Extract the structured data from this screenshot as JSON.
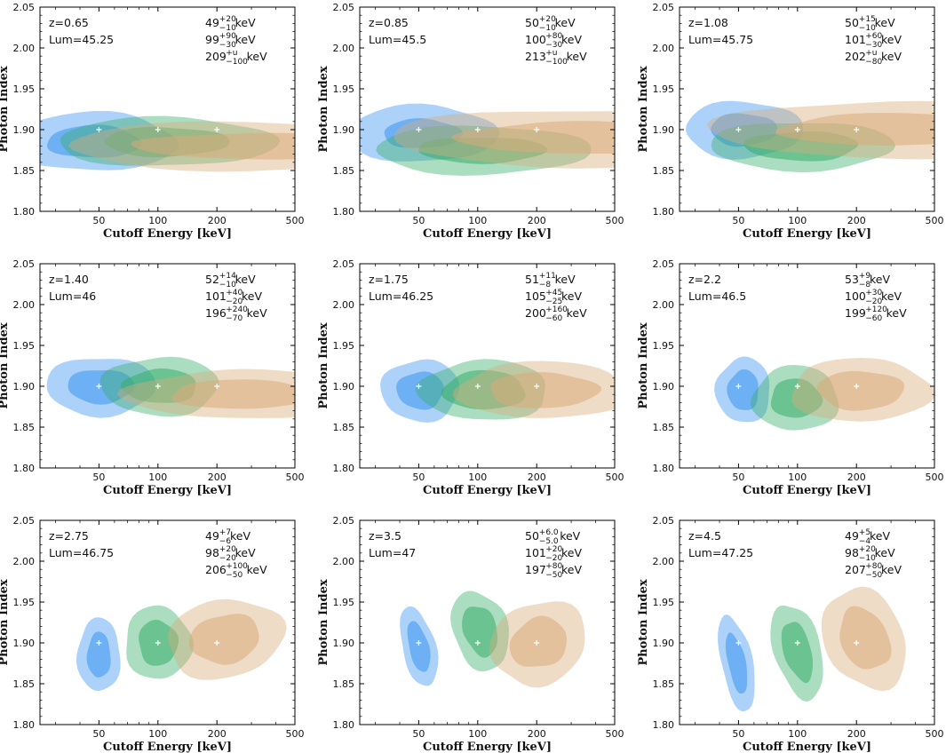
{
  "chart_data": {
    "type": "contour",
    "xlabel": "Cutoff Energy [keV]",
    "ylabel": "Photon Index",
    "xscale": "log",
    "xlim": [
      25,
      500
    ],
    "ylim": [
      1.8,
      2.05
    ],
    "xticks": [
      "50",
      "100",
      "200",
      "500"
    ],
    "yticks": [
      "1.80",
      "1.85",
      "1.90",
      "1.95",
      "2.00",
      "2.05"
    ],
    "series_colors": [
      "#3a93f0",
      "#37ad6a",
      "#d8ac79"
    ],
    "true_points": [
      {
        "x": 50,
        "y": 1.9
      },
      {
        "x": 100,
        "y": 1.9
      },
      {
        "x": 200,
        "y": 1.9
      }
    ],
    "panels": [
      {
        "z": "z=0.65",
        "lum": "Lum=45.25",
        "fits": [
          {
            "val": "49",
            "plus": "+20",
            "minus": "−10",
            "unit": " keV"
          },
          {
            "val": "99",
            "plus": "+90",
            "minus": "−30",
            "unit": " keV"
          },
          {
            "val": "209",
            "plus": "+u",
            "minus": "−100",
            "unit": " keV"
          }
        ],
        "contours": [
          {
            "cx": 47,
            "cy": 1.885,
            "wo": 0.42,
            "ho": 0.036,
            "wi": 0.24,
            "hi": 0.02,
            "tilt": 0
          },
          {
            "cx": 110,
            "cy": 1.885,
            "wo": 0.56,
            "ho": 0.03,
            "wi": 0.32,
            "hi": 0.018,
            "tilt": 0
          },
          {
            "cx": 300,
            "cy": 1.88,
            "wo": 0.95,
            "ho": 0.03,
            "wi": 0.6,
            "hi": 0.016,
            "tilt": 0
          }
        ]
      },
      {
        "z": "z=0.85",
        "lum": "Lum=45.5",
        "fits": [
          {
            "val": "50",
            "plus": "+20",
            "minus": "−10",
            "unit": " keV"
          },
          {
            "val": "100",
            "plus": "+80",
            "minus": "−30",
            "unit": " keV"
          },
          {
            "val": "213",
            "plus": "+u",
            "minus": "−100",
            "unit": " keV"
          }
        ],
        "contours": [
          {
            "cx": 52,
            "cy": 1.895,
            "wo": 0.38,
            "ho": 0.035,
            "wi": 0.2,
            "hi": 0.018,
            "tilt": 0
          },
          {
            "cx": 105,
            "cy": 1.875,
            "wo": 0.55,
            "ho": 0.03,
            "wi": 0.33,
            "hi": 0.016,
            "tilt": 0
          },
          {
            "cx": 320,
            "cy": 1.89,
            "wo": 0.95,
            "ho": 0.035,
            "wi": 0.6,
            "hi": 0.02,
            "tilt": 0
          }
        ]
      },
      {
        "z": "z=1.08",
        "lum": "Lum=45.75",
        "fits": [
          {
            "val": "50",
            "plus": "+15",
            "minus": "−10",
            "unit": " keV"
          },
          {
            "val": "101",
            "plus": "+60",
            "minus": "−30",
            "unit": " keV"
          },
          {
            "val": "202",
            "plus": "+u",
            "minus": "−80",
            "unit": " keV"
          }
        ],
        "contours": [
          {
            "cx": 53,
            "cy": 1.9,
            "wo": 0.3,
            "ho": 0.035,
            "wi": 0.17,
            "hi": 0.02,
            "tilt": 0
          },
          {
            "cx": 105,
            "cy": 1.88,
            "wo": 0.47,
            "ho": 0.03,
            "wi": 0.29,
            "hi": 0.018,
            "tilt": 0
          },
          {
            "cx": 290,
            "cy": 1.9,
            "wo": 0.9,
            "ho": 0.035,
            "wi": 0.55,
            "hi": 0.02,
            "tilt": 0
          }
        ]
      },
      {
        "z": "z=1.40",
        "lum": "Lum=46",
        "fits": [
          {
            "val": "52",
            "plus": "+14",
            "minus": "−10",
            "unit": " keV"
          },
          {
            "val": "101",
            "plus": "+40",
            "minus": "−20",
            "unit": " keV"
          },
          {
            "val": "196",
            "plus": "+240",
            "minus": "−70",
            "unit": " keV"
          }
        ],
        "contours": [
          {
            "cx": 51,
            "cy": 1.9,
            "wo": 0.28,
            "ho": 0.036,
            "wi": 0.17,
            "hi": 0.021,
            "tilt": 0
          },
          {
            "cx": 103,
            "cy": 1.9,
            "wo": 0.3,
            "ho": 0.036,
            "wi": 0.19,
            "hi": 0.021,
            "tilt": 0
          },
          {
            "cx": 270,
            "cy": 1.89,
            "wo": 0.6,
            "ho": 0.03,
            "wi": 0.37,
            "hi": 0.018,
            "tilt": 0
          }
        ]
      },
      {
        "z": "z=1.75",
        "lum": "Lum=46.25",
        "fits": [
          {
            "val": "51",
            "plus": "+11",
            "minus": "−8",
            "unit": " keV"
          },
          {
            "val": "105",
            "plus": "+45",
            "minus": "−25",
            "unit": " keV"
          },
          {
            "val": "200",
            "plus": "+160",
            "minus": "−60",
            "unit": " keV"
          }
        ],
        "contours": [
          {
            "cx": 51,
            "cy": 1.895,
            "wo": 0.2,
            "ho": 0.038,
            "wi": 0.12,
            "hi": 0.023,
            "tilt": 0
          },
          {
            "cx": 108,
            "cy": 1.895,
            "wo": 0.33,
            "ho": 0.037,
            "wi": 0.21,
            "hi": 0.024,
            "tilt": 0
          },
          {
            "cx": 215,
            "cy": 1.895,
            "wo": 0.44,
            "ho": 0.035,
            "wi": 0.28,
            "hi": 0.022,
            "tilt": 0
          }
        ]
      },
      {
        "z": "z=2.2",
        "lum": "Lum=46.5",
        "fits": [
          {
            "val": "53",
            "plus": "+9",
            "minus": "−8",
            "unit": " keV"
          },
          {
            "val": "100",
            "plus": "+30",
            "minus": "−20",
            "unit": " keV"
          },
          {
            "val": "199",
            "plus": "+120",
            "minus": "−60",
            "unit": " keV"
          }
        ],
        "contours": [
          {
            "cx": 53,
            "cy": 1.895,
            "wo": 0.14,
            "ho": 0.04,
            "wi": 0.08,
            "hi": 0.025,
            "tilt": 0
          },
          {
            "cx": 98,
            "cy": 1.885,
            "wo": 0.22,
            "ho": 0.04,
            "wi": 0.13,
            "hi": 0.024,
            "tilt": 0
          },
          {
            "cx": 210,
            "cy": 1.895,
            "wo": 0.36,
            "ho": 0.039,
            "wi": 0.22,
            "hi": 0.024,
            "tilt": 0
          }
        ]
      },
      {
        "z": "z=2.75",
        "lum": "Lum=46.75",
        "fits": [
          {
            "val": "49",
            "plus": "+7",
            "minus": "−6",
            "unit": " keV"
          },
          {
            "val": "98",
            "plus": "+20",
            "minus": "−20",
            "unit": " keV"
          },
          {
            "val": "206",
            "plus": "+100",
            "minus": "−50",
            "unit": " keV"
          }
        ],
        "contours": [
          {
            "cx": 50,
            "cy": 1.885,
            "wo": 0.11,
            "ho": 0.045,
            "wi": 0.06,
            "hi": 0.028,
            "tilt": 0
          },
          {
            "cx": 100,
            "cy": 1.9,
            "wo": 0.17,
            "ho": 0.045,
            "wi": 0.1,
            "hi": 0.028,
            "tilt": 6
          },
          {
            "cx": 220,
            "cy": 1.905,
            "wo": 0.3,
            "ho": 0.048,
            "wi": 0.18,
            "hi": 0.03,
            "tilt": 10
          }
        ]
      },
      {
        "z": "z=3.5",
        "lum": "Lum=47",
        "fits": [
          {
            "val": "50",
            "plus": "+6.0",
            "minus": "−5.0",
            "unit": " keV"
          },
          {
            "val": "101",
            "plus": "+20",
            "minus": "−20",
            "unit": " keV"
          },
          {
            "val": "197",
            "plus": "+80",
            "minus": "−50",
            "unit": " keV"
          }
        ],
        "contours": [
          {
            "cx": 50,
            "cy": 1.895,
            "wo": 0.085,
            "ho": 0.05,
            "wi": 0.05,
            "hi": 0.032,
            "tilt": 14
          },
          {
            "cx": 103,
            "cy": 1.915,
            "wo": 0.14,
            "ho": 0.05,
            "wi": 0.085,
            "hi": 0.032,
            "tilt": 18
          },
          {
            "cx": 205,
            "cy": 1.9,
            "wo": 0.25,
            "ho": 0.05,
            "wi": 0.15,
            "hi": 0.03,
            "tilt": 24
          }
        ]
      },
      {
        "z": "z=4.5",
        "lum": "Lum=47.25",
        "fits": [
          {
            "val": "49",
            "plus": "+5",
            "minus": "−4",
            "unit": " keV"
          },
          {
            "val": "98",
            "plus": "+20",
            "minus": "−10",
            "unit": " keV"
          },
          {
            "val": "207",
            "plus": "+80",
            "minus": "−50",
            "unit": " keV"
          }
        ],
        "contours": [
          {
            "cx": 49,
            "cy": 1.875,
            "wo": 0.08,
            "ho": 0.06,
            "wi": 0.045,
            "hi": 0.038,
            "tilt": 12
          },
          {
            "cx": 100,
            "cy": 1.89,
            "wo": 0.12,
            "ho": 0.06,
            "wi": 0.07,
            "hi": 0.038,
            "tilt": 16
          },
          {
            "cx": 220,
            "cy": 1.905,
            "wo": 0.2,
            "ho": 0.065,
            "wi": 0.12,
            "hi": 0.04,
            "tilt": 26
          }
        ]
      }
    ]
  }
}
